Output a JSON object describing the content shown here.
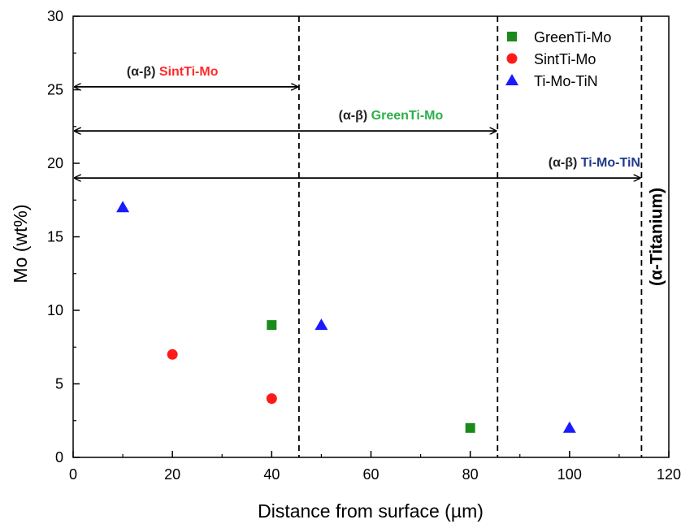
{
  "chart_data": {
    "type": "scatter",
    "xlabel": "Distance from surface (µm)",
    "ylabel": "Mo (wt%)",
    "xlim": [
      0,
      120
    ],
    "ylim": [
      0,
      30
    ],
    "xticks": [
      "0",
      "20",
      "40",
      "60",
      "80",
      "100",
      "120"
    ],
    "yticks": [
      "0",
      "5",
      "10",
      "15",
      "20",
      "25",
      "30"
    ],
    "grid": false,
    "legend_position": "top-right",
    "series": [
      {
        "name": "GreenTi-Mo",
        "marker": "square",
        "color": "#1a8a1a",
        "points": [
          {
            "x": 40,
            "y": 9
          },
          {
            "x": 80,
            "y": 2
          }
        ]
      },
      {
        "name": "SintTi-Mo",
        "marker": "circle",
        "color": "#ff1a1a",
        "points": [
          {
            "x": 20,
            "y": 7
          },
          {
            "x": 40,
            "y": 4
          }
        ]
      },
      {
        "name": "Ti-Mo-TiN",
        "marker": "triangle",
        "color": "#1a1aff",
        "points": [
          {
            "x": 10,
            "y": 17
          },
          {
            "x": 50,
            "y": 9
          },
          {
            "x": 100,
            "y": 2
          }
        ]
      }
    ],
    "vlines": [
      45.5,
      85.5,
      114.5
    ],
    "ranges": [
      {
        "prefix": "(α-β)",
        "name": "SintTi-Mo",
        "color": "#ff2a2a",
        "x_start": 0,
        "x_end": 45.5,
        "y": 25.2,
        "label_x": 20
      },
      {
        "prefix": "(α-β)",
        "name": "GreenTi-Mo",
        "color": "#2bb04a",
        "x_start": 0,
        "x_end": 85.5,
        "y": 22.2,
        "label_x": 64
      },
      {
        "prefix": "(α-β)",
        "name": "Ti-Mo-TiN",
        "color": "#1f3a8a",
        "x_start": 0,
        "x_end": 114.5,
        "y": 19,
        "label_x": 105
      }
    ],
    "region_label": {
      "text": "(α-Titanium)",
      "x": 117.5,
      "y": 15
    }
  }
}
